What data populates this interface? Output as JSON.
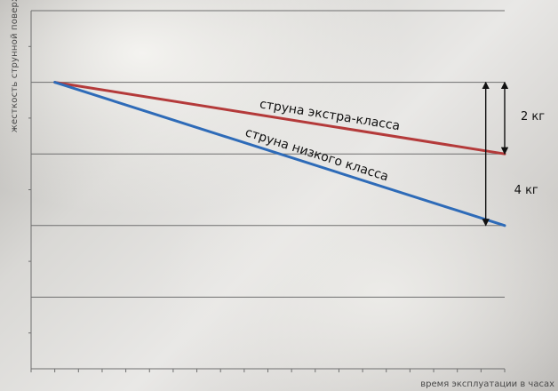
{
  "chart_data": {
    "type": "line",
    "title": "",
    "xlabel": "время эксплуатации в часах",
    "ylabel": "жесткость струнной поверхности в кг",
    "ylim": [
      0,
      10
    ],
    "xlim": [
      0,
      10
    ],
    "grid": true,
    "series": [
      {
        "name": "струна экстра-класса",
        "color": "#b43a3a",
        "x": [
          0.5,
          10
        ],
        "y": [
          8,
          6
        ]
      },
      {
        "name": "струна низкого класса",
        "color": "#2e6bb8",
        "x": [
          0.5,
          10
        ],
        "y": [
          8,
          4
        ]
      }
    ],
    "annotations": [
      {
        "label": "2 кг",
        "x": 10,
        "y_from": 8,
        "y_to": 6
      },
      {
        "label": "4 кг",
        "x": 9.6,
        "y_from": 8,
        "y_to": 4
      }
    ]
  }
}
